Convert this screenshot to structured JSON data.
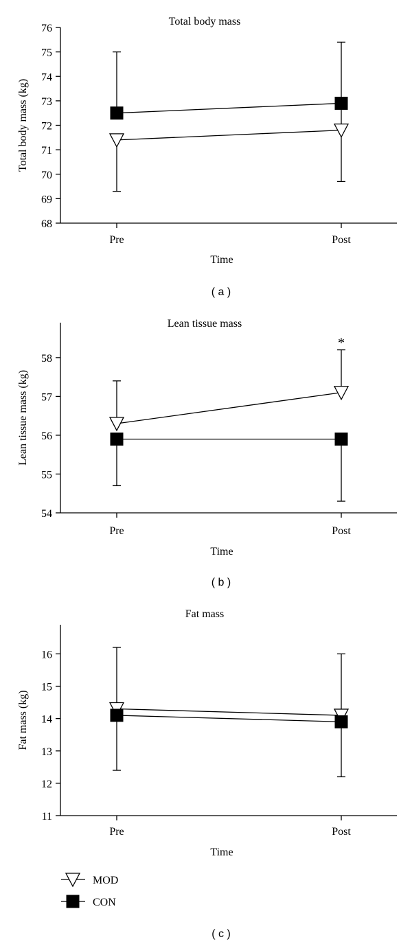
{
  "chart_data": [
    {
      "type": "line",
      "panel_label": "( a )",
      "title": "Total body mass",
      "xlabel": "Time",
      "ylabel": "Total body mass (kg)",
      "categories": [
        "Pre",
        "Post"
      ],
      "ylim": [
        68,
        76
      ],
      "yticks": [
        68,
        69,
        70,
        71,
        72,
        73,
        74,
        75,
        76
      ],
      "series": [
        {
          "name": "MOD",
          "marker": "open-triangle-down",
          "values": [
            71.4,
            71.8
          ],
          "error_high": [
            null,
            75.4
          ],
          "error_low": [
            69.3,
            69.7
          ]
        },
        {
          "name": "CON",
          "marker": "filled-square",
          "values": [
            72.5,
            72.9
          ],
          "error_high": [
            75.0,
            null
          ],
          "error_low": [
            null,
            null
          ]
        }
      ],
      "annotations": []
    },
    {
      "type": "line",
      "panel_label": "( b )",
      "title": "Lean tissue mass",
      "xlabel": "Time",
      "ylabel": "Lean tissue mass (kg)",
      "categories": [
        "Pre",
        "Post"
      ],
      "ylim": [
        54,
        58.9
      ],
      "yticks": [
        54,
        55,
        56,
        57,
        58
      ],
      "series": [
        {
          "name": "MOD",
          "marker": "open-triangle-down",
          "values": [
            56.3,
            57.1
          ],
          "error_high": [
            57.4,
            58.2
          ],
          "error_low": [
            null,
            null
          ]
        },
        {
          "name": "CON",
          "marker": "filled-square",
          "values": [
            55.9,
            55.9
          ],
          "error_high": [
            null,
            null
          ],
          "error_low": [
            54.7,
            54.3
          ]
        }
      ],
      "annotations": [
        {
          "text": "*",
          "category": "Post",
          "y": 58.45
        }
      ]
    },
    {
      "type": "line",
      "panel_label": "( c )",
      "title": "Fat mass",
      "xlabel": "Time",
      "ylabel": "Fat mass (kg)",
      "categories": [
        "Pre",
        "Post"
      ],
      "ylim": [
        11,
        16.9
      ],
      "yticks": [
        11,
        12,
        13,
        14,
        15,
        16
      ],
      "series": [
        {
          "name": "MOD",
          "marker": "open-triangle-down",
          "values": [
            14.3,
            14.1
          ],
          "error_high": [
            16.2,
            16.0
          ],
          "error_low": [
            null,
            null
          ]
        },
        {
          "name": "CON",
          "marker": "filled-square",
          "values": [
            14.1,
            13.9
          ],
          "error_high": [
            null,
            null
          ],
          "error_low": [
            12.4,
            12.2
          ]
        }
      ],
      "annotations": [],
      "legend": [
        {
          "label": "MOD",
          "marker": "open-triangle-down"
        },
        {
          "label": "CON",
          "marker": "filled-square"
        }
      ]
    }
  ]
}
